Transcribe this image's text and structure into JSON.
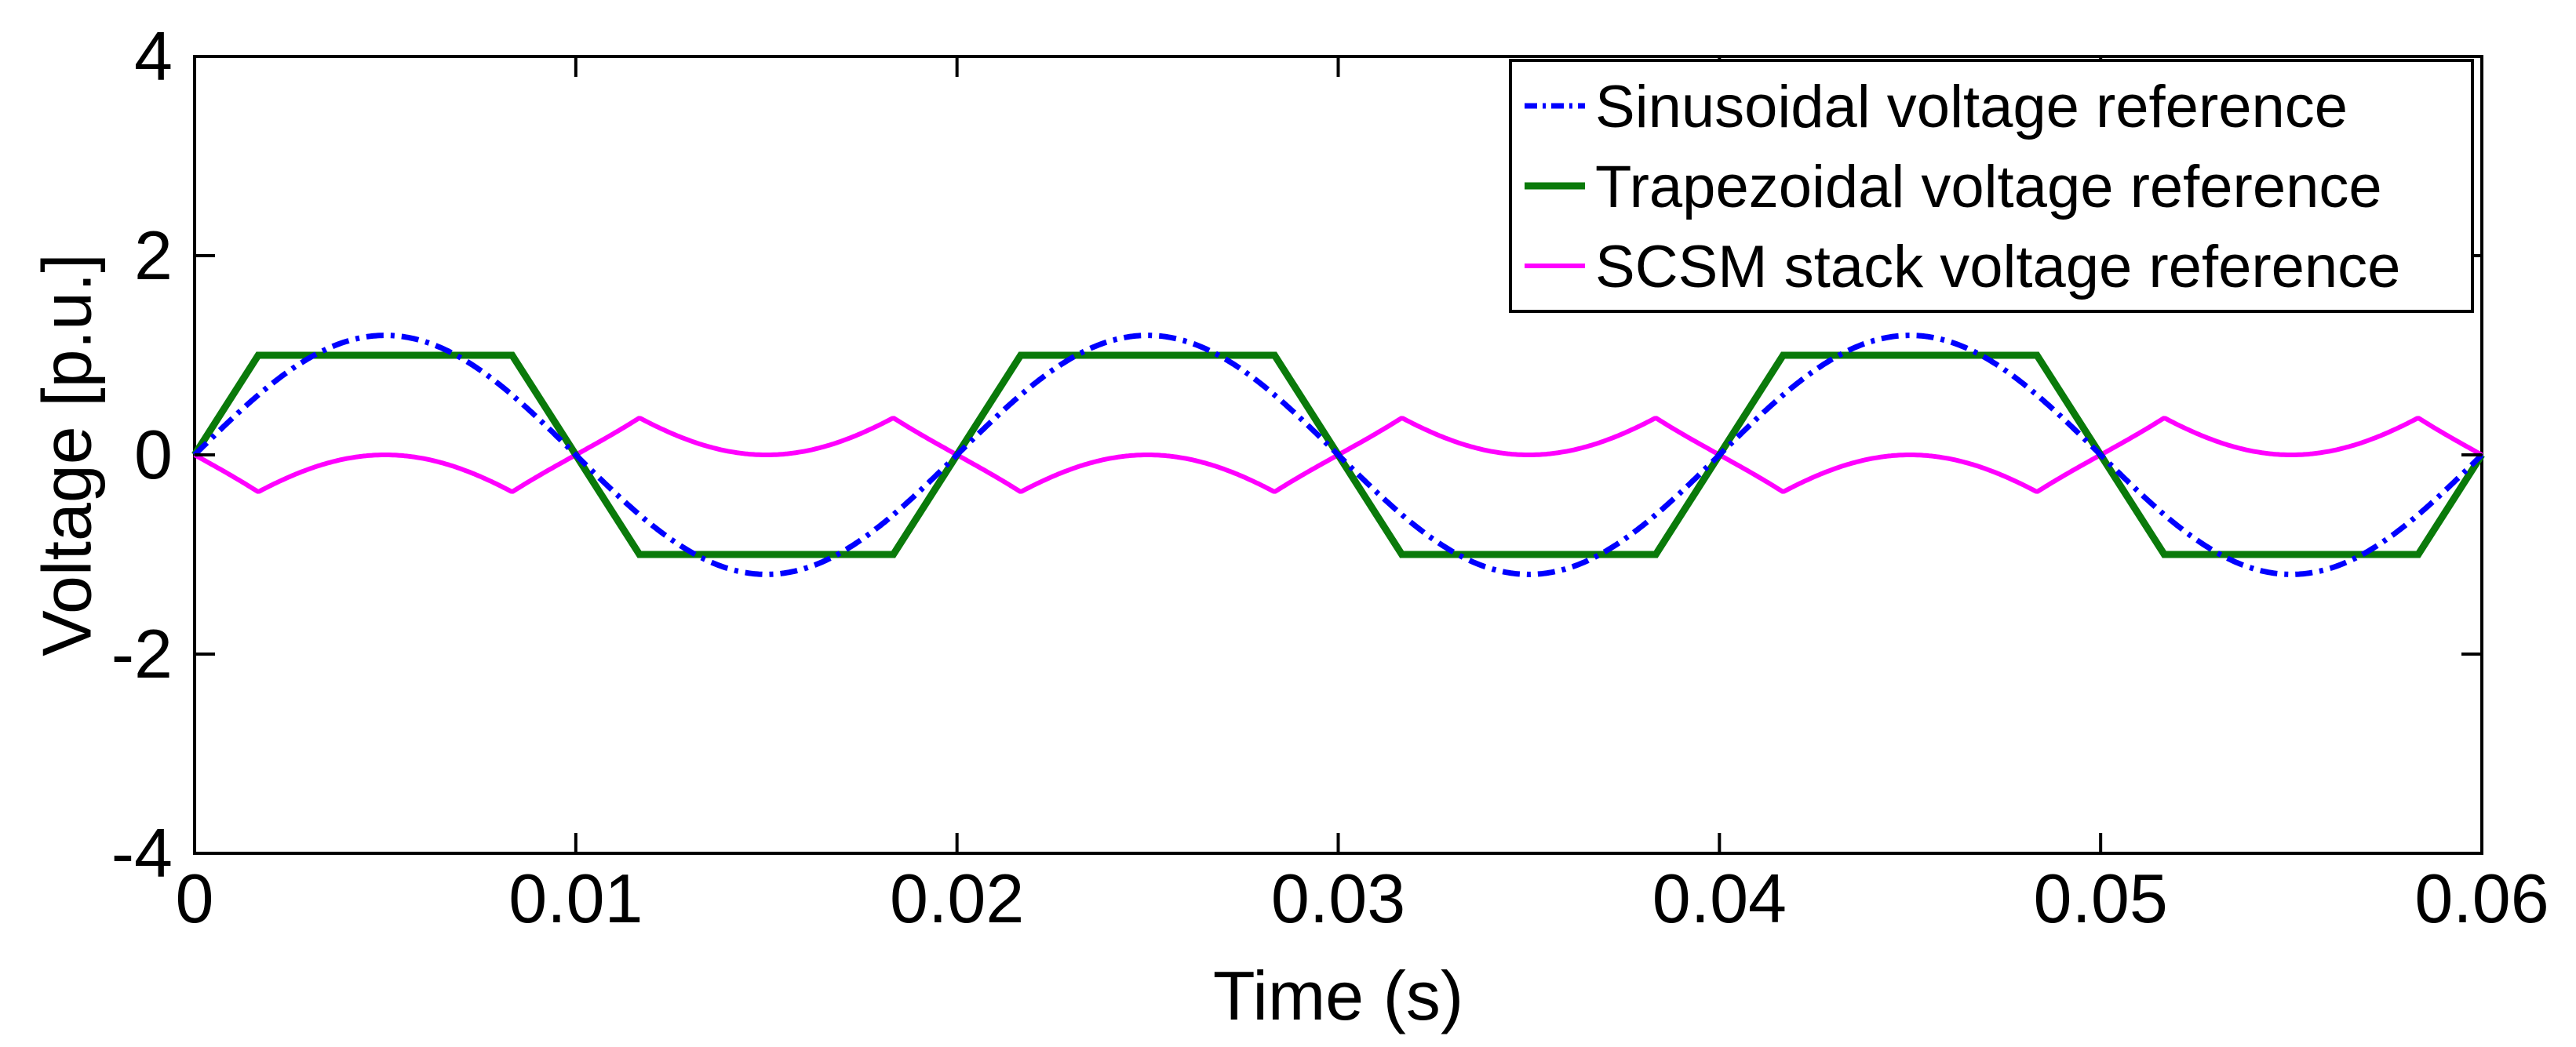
{
  "chart_data": {
    "type": "line",
    "title": "",
    "xlabel": "Time (s)",
    "ylabel": "Voltage [p.u.]",
    "xlim": [
      0,
      0.06
    ],
    "ylim": [
      -4,
      4
    ],
    "xticks": [
      0,
      0.01,
      0.02,
      0.03,
      0.04,
      0.05,
      0.06
    ],
    "xtick_labels": [
      "0",
      "0.01",
      "0.02",
      "0.03",
      "0.04",
      "0.05",
      "0.06"
    ],
    "yticks": [
      -4,
      -2,
      0,
      2,
      4
    ],
    "ytick_labels": [
      "-4",
      "-2",
      "0",
      "2",
      "4"
    ],
    "grid": false,
    "legend_position": "top-right",
    "series": [
      {
        "name": "Sinusoidal voltage reference",
        "style": "dash-dot",
        "color": "#0000ff",
        "function": "sine",
        "amplitude": 1.2,
        "frequency_hz": 50
      },
      {
        "name": "Trapezoidal voltage reference",
        "style": "solid",
        "color": "#0a7a0a",
        "points": [
          [
            0,
            0
          ],
          [
            0.00167,
            1
          ],
          [
            0.00833,
            1
          ],
          [
            0.01167,
            -1
          ],
          [
            0.01833,
            -1
          ],
          [
            0.02167,
            1
          ],
          [
            0.02833,
            1
          ],
          [
            0.03167,
            -1
          ],
          [
            0.03833,
            -1
          ],
          [
            0.04167,
            1
          ],
          [
            0.04833,
            1
          ],
          [
            0.05167,
            -1
          ],
          [
            0.05833,
            -1
          ],
          [
            0.06,
            0
          ]
        ]
      },
      {
        "name": "SCSM stack voltage reference",
        "style": "solid",
        "color": "#ff00ff",
        "function": "trapezoid-minus-sine",
        "peak": 0.37
      }
    ]
  }
}
